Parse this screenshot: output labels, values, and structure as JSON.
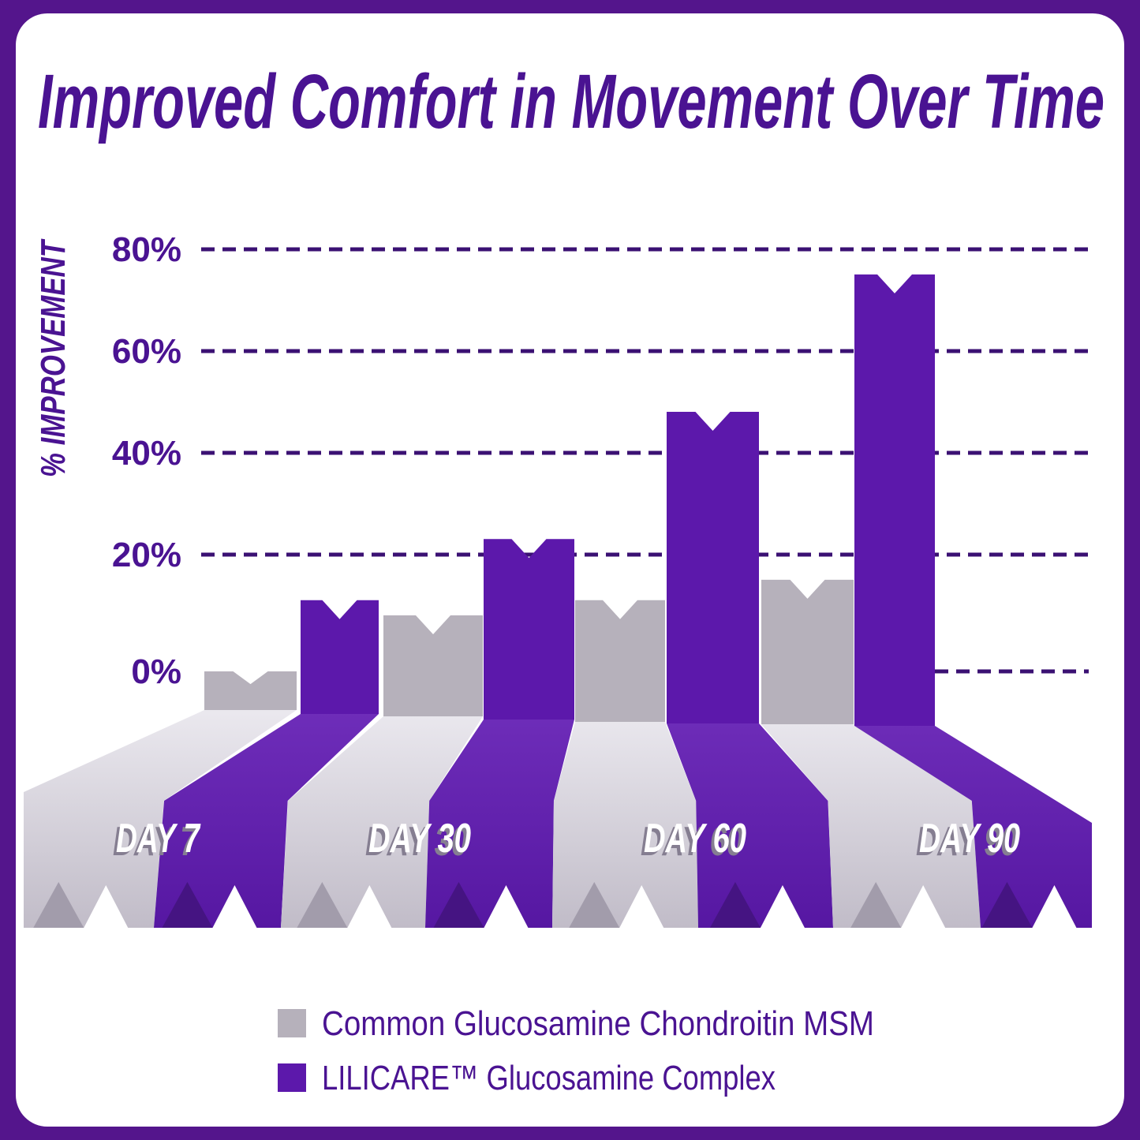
{
  "card": {
    "title": "Improved Comfort in Movement Over Time"
  },
  "y_axis": {
    "label": "% IMPROVEMENT",
    "ticks": [
      "80%",
      "60%",
      "40%",
      "20%",
      "0%"
    ]
  },
  "x_axis": {
    "labels": [
      "DAY 7",
      "DAY 30",
      "DAY 60",
      "DAY 90"
    ]
  },
  "legend": {
    "items": [
      {
        "label": "Common Glucosamine Chondroitin MSM",
        "color": "#b6b1bb"
      },
      {
        "label": "LILICARE™ Glucosamine Complex",
        "color": "#5c18ab"
      }
    ]
  },
  "colors": {
    "frame": "#54158c",
    "card": "#ffffff",
    "title_text": "#4a1392",
    "grid": "#3b1173",
    "bar_common": "#b6b1bb",
    "bar_lilicare": "#5c18ab",
    "ribbon_common_light": "#eceaf0",
    "ribbon_common_dark": "#c1bcc8",
    "ribbon_lilicare_light": "#6f2eba",
    "ribbon_lilicare_dark": "#5617a2",
    "fold_common": "#a29cab",
    "fold_lilicare": "#451482",
    "day_label_text": "#ffffff",
    "day_label_shadow": "#857e91"
  },
  "chart_data": {
    "type": "bar",
    "title": "Improved Comfort in Movement Over Time",
    "categories": [
      "DAY 7",
      "DAY 30",
      "DAY 60",
      "DAY 90"
    ],
    "series": [
      {
        "name": "Common Glucosamine Chondroitin MSM",
        "color": "#b6b1bb",
        "values": [
          0,
          11,
          14,
          18
        ]
      },
      {
        "name": "LILICARE™ Glucosamine Complex",
        "color": "#5c18ab",
        "values": [
          14,
          26,
          51,
          78
        ]
      }
    ],
    "xlabel": "",
    "ylabel": "% IMPROVEMENT",
    "ylim": [
      0,
      80
    ],
    "yticks": [
      80,
      60,
      40,
      20,
      0
    ],
    "unit": "percent improvement",
    "grid": "dashed horizontal",
    "legend_position": "bottom",
    "style": "pseudo-3d notched bars with perspective ribbons"
  }
}
